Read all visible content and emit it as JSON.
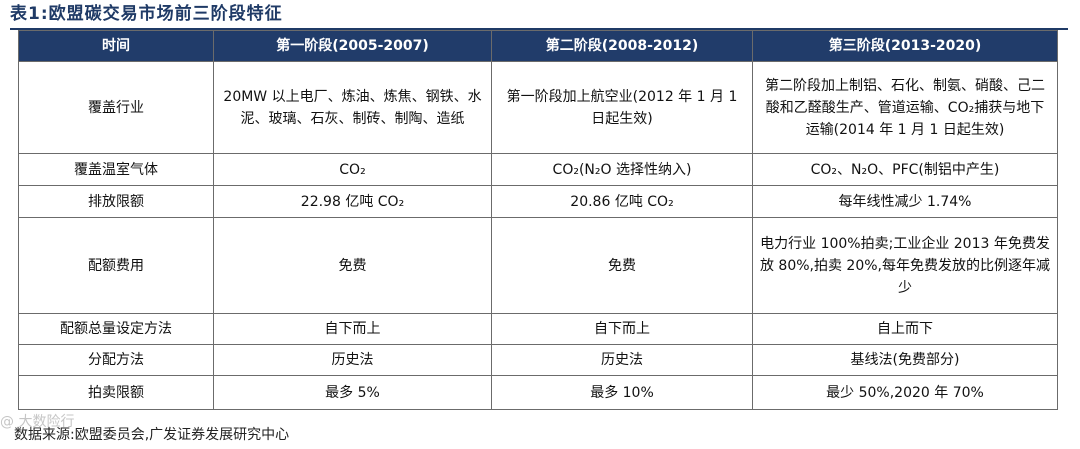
{
  "title": "表1:欧盟碳交易市场前三阶段特征",
  "header": [
    "时间",
    "第一阶段(2005-2007)",
    "第二阶段(2008-2012)",
    "第三阶段(2013-2020)"
  ],
  "rows": [
    {
      "label": "覆盖行业",
      "c1": "20MW 以上电厂、炼油、炼焦、钢铁、水泥、玻璃、石灰、制砖、制陶、造纸",
      "c2": "第一阶段加上航空业(2012 年 1 月 1 日起生效)",
      "c3": "第二阶段加上制铝、石化、制氨、硝酸、己二酸和乙醛酸生产、管道运输、CO₂捕获与地下运输(2014 年 1 月 1 日起生效)"
    },
    {
      "label": "覆盖温室气体",
      "c1": "CO₂",
      "c2": "CO₂(N₂O 选择性纳入)",
      "c3": "CO₂、N₂O、PFC(制铝中产生)"
    },
    {
      "label": "排放限额",
      "c1": "22.98 亿吨 CO₂",
      "c2": "20.86 亿吨 CO₂",
      "c3": "每年线性减少 1.74%"
    },
    {
      "label": "配额费用",
      "c1": "免费",
      "c2": "免费",
      "c3": "电力行业 100%拍卖;工业企业 2013 年免费发放 80%,拍卖 20%,每年免费发放的比例逐年减少"
    },
    {
      "label": "配额总量设定方法",
      "c1": "自下而上",
      "c2": "自下而上",
      "c3": "自上而下"
    },
    {
      "label": "分配方法",
      "c1": "历史法",
      "c2": "历史法",
      "c3": "基线法(免费部分)"
    },
    {
      "label": "拍卖限额",
      "c1": "最多 5%",
      "c2": "最多 10%",
      "c3": "最少 50%,2020 年 70%"
    }
  ],
  "source": "数据来源:欧盟委员会,广发证券发展研究中心",
  "watermark": "@ 大数险行"
}
